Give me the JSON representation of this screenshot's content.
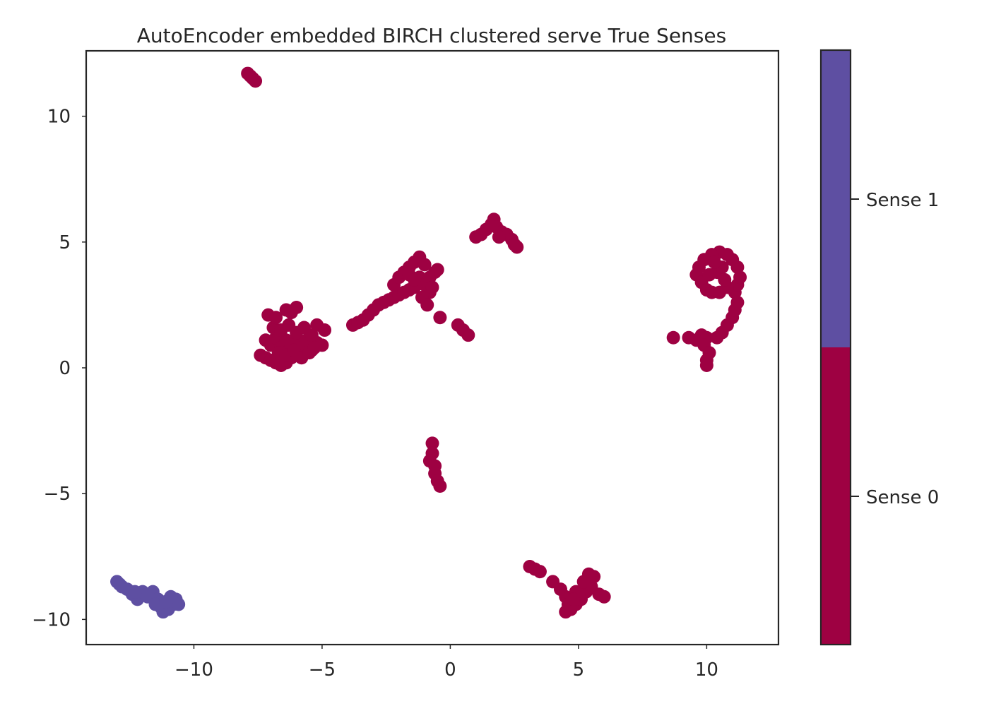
{
  "chart_data": {
    "type": "scatter",
    "title": "AutoEncoder embedded BIRCH clustered serve True Senses",
    "xlabel": "",
    "ylabel": "",
    "xlim": [
      -14.2,
      12.8
    ],
    "ylim": [
      -11.0,
      12.6
    ],
    "xticks": [
      -10,
      -5,
      0,
      5,
      10
    ],
    "xtick_labels": [
      "−10",
      "−5",
      "0",
      "5",
      "10"
    ],
    "yticks": [
      -10,
      -5,
      0,
      5,
      10
    ],
    "ytick_labels": [
      "−10",
      "−5",
      "0",
      "5",
      "10"
    ],
    "grid": false,
    "colorbar": {
      "labels": [
        "Sense 0",
        "Sense 1"
      ],
      "colors": [
        "#9e0142",
        "#5e4fa2"
      ]
    },
    "series": [
      {
        "name": "Sense 0",
        "color": "#9e0142",
        "points": [
          [
            -7.9,
            11.7
          ],
          [
            -7.8,
            11.6
          ],
          [
            -7.7,
            11.5
          ],
          [
            -7.6,
            11.4
          ],
          [
            -7.4,
            0.5
          ],
          [
            -7.2,
            0.4
          ],
          [
            -7.0,
            0.3
          ],
          [
            -6.8,
            0.2
          ],
          [
            -6.6,
            0.1
          ],
          [
            -6.4,
            0.2
          ],
          [
            -6.2,
            0.4
          ],
          [
            -6.0,
            0.5
          ],
          [
            -7.2,
            1.1
          ],
          [
            -7.0,
            0.9
          ],
          [
            -6.8,
            1.2
          ],
          [
            -6.6,
            0.8
          ],
          [
            -6.4,
            1.1
          ],
          [
            -6.2,
            0.9
          ],
          [
            -6.0,
            1.2
          ],
          [
            -5.8,
            0.8
          ],
          [
            -5.6,
            1.1
          ],
          [
            -5.4,
            0.7
          ],
          [
            -5.2,
            1.0
          ],
          [
            -5.0,
            0.9
          ],
          [
            -6.9,
            1.6
          ],
          [
            -6.6,
            1.5
          ],
          [
            -6.3,
            1.7
          ],
          [
            -6.0,
            1.4
          ],
          [
            -5.7,
            1.6
          ],
          [
            -5.4,
            1.3
          ],
          [
            -5.2,
            1.7
          ],
          [
            -4.9,
            1.5
          ],
          [
            -7.1,
            2.1
          ],
          [
            -6.8,
            2.0
          ],
          [
            -6.4,
            2.3
          ],
          [
            -6.2,
            2.2
          ],
          [
            -6.0,
            2.4
          ],
          [
            -6.7,
            0.6
          ],
          [
            -6.4,
            0.5
          ],
          [
            -6.1,
            0.7
          ],
          [
            -5.8,
            0.4
          ],
          [
            -5.5,
            0.6
          ],
          [
            -5.3,
            0.8
          ],
          [
            -3.8,
            1.7
          ],
          [
            -3.6,
            1.8
          ],
          [
            -3.4,
            1.9
          ],
          [
            -3.2,
            2.1
          ],
          [
            -3.0,
            2.3
          ],
          [
            -2.8,
            2.5
          ],
          [
            -2.6,
            2.6
          ],
          [
            -2.4,
            2.7
          ],
          [
            -2.2,
            2.8
          ],
          [
            -2.0,
            2.9
          ],
          [
            -1.8,
            3.0
          ],
          [
            -1.6,
            3.1
          ],
          [
            -2.2,
            3.3
          ],
          [
            -2.0,
            3.6
          ],
          [
            -1.8,
            3.8
          ],
          [
            -1.6,
            4.0
          ],
          [
            -1.4,
            4.2
          ],
          [
            -1.2,
            4.4
          ],
          [
            -1.0,
            4.1
          ],
          [
            -1.2,
            3.6
          ],
          [
            -1.4,
            3.2
          ],
          [
            -1.0,
            3.3
          ],
          [
            -0.8,
            3.0
          ],
          [
            -1.1,
            2.8
          ],
          [
            -0.8,
            3.6
          ],
          [
            -0.6,
            3.8
          ],
          [
            -0.5,
            3.9
          ],
          [
            -0.7,
            3.2
          ],
          [
            -0.9,
            2.5
          ],
          [
            -0.4,
            2.0
          ],
          [
            0.3,
            1.7
          ],
          [
            0.5,
            1.5
          ],
          [
            0.7,
            1.3
          ],
          [
            -1.6,
            3.7
          ],
          [
            -1.4,
            3.5
          ],
          [
            1.0,
            5.2
          ],
          [
            1.2,
            5.3
          ],
          [
            1.4,
            5.5
          ],
          [
            1.6,
            5.7
          ],
          [
            1.7,
            5.9
          ],
          [
            1.8,
            5.6
          ],
          [
            2.0,
            5.4
          ],
          [
            2.2,
            5.3
          ],
          [
            2.4,
            5.1
          ],
          [
            2.5,
            4.9
          ],
          [
            2.6,
            4.8
          ],
          [
            1.9,
            5.2
          ],
          [
            8.7,
            1.2
          ],
          [
            9.3,
            1.2
          ],
          [
            9.6,
            1.1
          ],
          [
            9.8,
            1.3
          ],
          [
            10.0,
            1.2
          ],
          [
            9.9,
            0.9
          ],
          [
            10.1,
            0.6
          ],
          [
            10.0,
            0.3
          ],
          [
            10.0,
            0.1
          ],
          [
            10.4,
            1.2
          ],
          [
            10.6,
            1.4
          ],
          [
            10.8,
            1.7
          ],
          [
            11.0,
            2.0
          ],
          [
            11.1,
            2.3
          ],
          [
            11.2,
            2.6
          ],
          [
            11.1,
            3.0
          ],
          [
            11.2,
            3.3
          ],
          [
            11.3,
            3.6
          ],
          [
            11.2,
            4.0
          ],
          [
            11.0,
            4.3
          ],
          [
            10.8,
            4.5
          ],
          [
            10.5,
            4.6
          ],
          [
            10.2,
            4.5
          ],
          [
            9.9,
            4.3
          ],
          [
            9.7,
            4.0
          ],
          [
            9.6,
            3.7
          ],
          [
            9.8,
            3.4
          ],
          [
            10.0,
            3.1
          ],
          [
            10.2,
            3.0
          ],
          [
            10.5,
            3.0
          ],
          [
            10.8,
            3.2
          ],
          [
            10.4,
            3.8
          ],
          [
            10.1,
            3.7
          ],
          [
            10.6,
            4.0
          ],
          [
            10.3,
            4.2
          ],
          [
            10.7,
            3.5
          ],
          [
            -0.7,
            -3.0
          ],
          [
            -0.7,
            -3.4
          ],
          [
            -0.8,
            -3.7
          ],
          [
            -0.6,
            -3.9
          ],
          [
            -0.6,
            -4.2
          ],
          [
            -0.5,
            -4.5
          ],
          [
            -0.4,
            -4.7
          ],
          [
            3.1,
            -7.9
          ],
          [
            3.3,
            -8.0
          ],
          [
            3.5,
            -8.1
          ],
          [
            4.0,
            -8.5
          ],
          [
            4.3,
            -8.8
          ],
          [
            4.5,
            -9.1
          ],
          [
            4.6,
            -9.4
          ],
          [
            4.5,
            -9.7
          ],
          [
            4.7,
            -9.6
          ],
          [
            4.9,
            -9.4
          ],
          [
            5.1,
            -9.2
          ],
          [
            5.3,
            -8.9
          ],
          [
            5.5,
            -8.7
          ],
          [
            5.8,
            -9.0
          ],
          [
            6.0,
            -9.1
          ],
          [
            5.6,
            -8.3
          ],
          [
            5.4,
            -8.2
          ],
          [
            5.2,
            -8.5
          ],
          [
            4.9,
            -8.9
          ],
          [
            5.0,
            -9.0
          ],
          [
            4.8,
            -9.2
          ]
        ]
      },
      {
        "name": "Sense 1",
        "color": "#5e4fa2",
        "points": [
          [
            -13.0,
            -8.5
          ],
          [
            -12.9,
            -8.6
          ],
          [
            -12.8,
            -8.7
          ],
          [
            -12.6,
            -8.8
          ],
          [
            -12.4,
            -9.0
          ],
          [
            -12.2,
            -9.2
          ],
          [
            -12.0,
            -8.9
          ],
          [
            -11.8,
            -9.1
          ],
          [
            -11.6,
            -8.9
          ],
          [
            -11.4,
            -9.2
          ],
          [
            -11.3,
            -9.5
          ],
          [
            -11.2,
            -9.7
          ],
          [
            -11.0,
            -9.6
          ],
          [
            -10.8,
            -9.4
          ],
          [
            -10.7,
            -9.2
          ],
          [
            -10.6,
            -9.4
          ],
          [
            -10.9,
            -9.1
          ],
          [
            -12.3,
            -8.9
          ],
          [
            -11.5,
            -9.4
          ],
          [
            -11.1,
            -9.3
          ]
        ]
      }
    ]
  }
}
